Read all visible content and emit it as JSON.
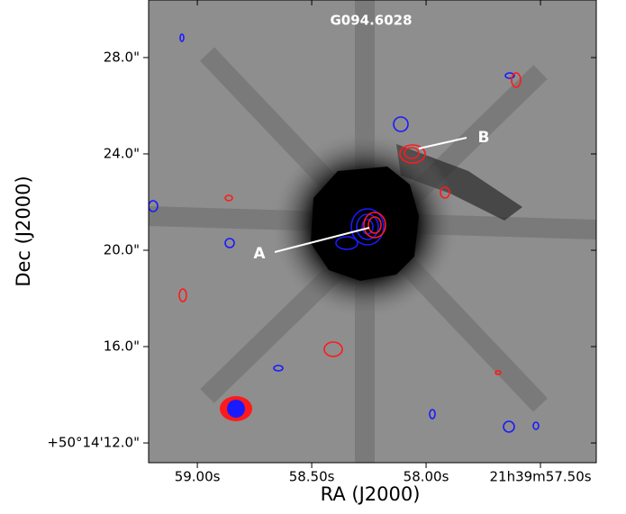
{
  "chart_data": {
    "type": "image",
    "title": "G094.6028",
    "xlabel": "RA (J2000)",
    "ylabel": "Dec (J2000)",
    "annotations": [
      "A",
      "B"
    ],
    "xlim": [
      59.213,
      57.256
    ],
    "ylim": [
      11.18,
      30.39
    ],
    "xticks": [
      {
        "value": 59.0,
        "label": "59.00s"
      },
      {
        "value": 58.5,
        "label": "58.50s"
      },
      {
        "value": 58.0,
        "label": "58.00s"
      },
      {
        "value": 57.5,
        "label": "21h39m57.50s"
      }
    ],
    "yticks": [
      {
        "value": 12,
        "label": "+50°14'12.0\""
      },
      {
        "value": 16,
        "label": "16.0\""
      },
      {
        "value": 20,
        "label": "20.0\""
      },
      {
        "value": 24,
        "label": "24.0\""
      },
      {
        "value": 28,
        "label": "28.0\""
      }
    ]
  }
}
